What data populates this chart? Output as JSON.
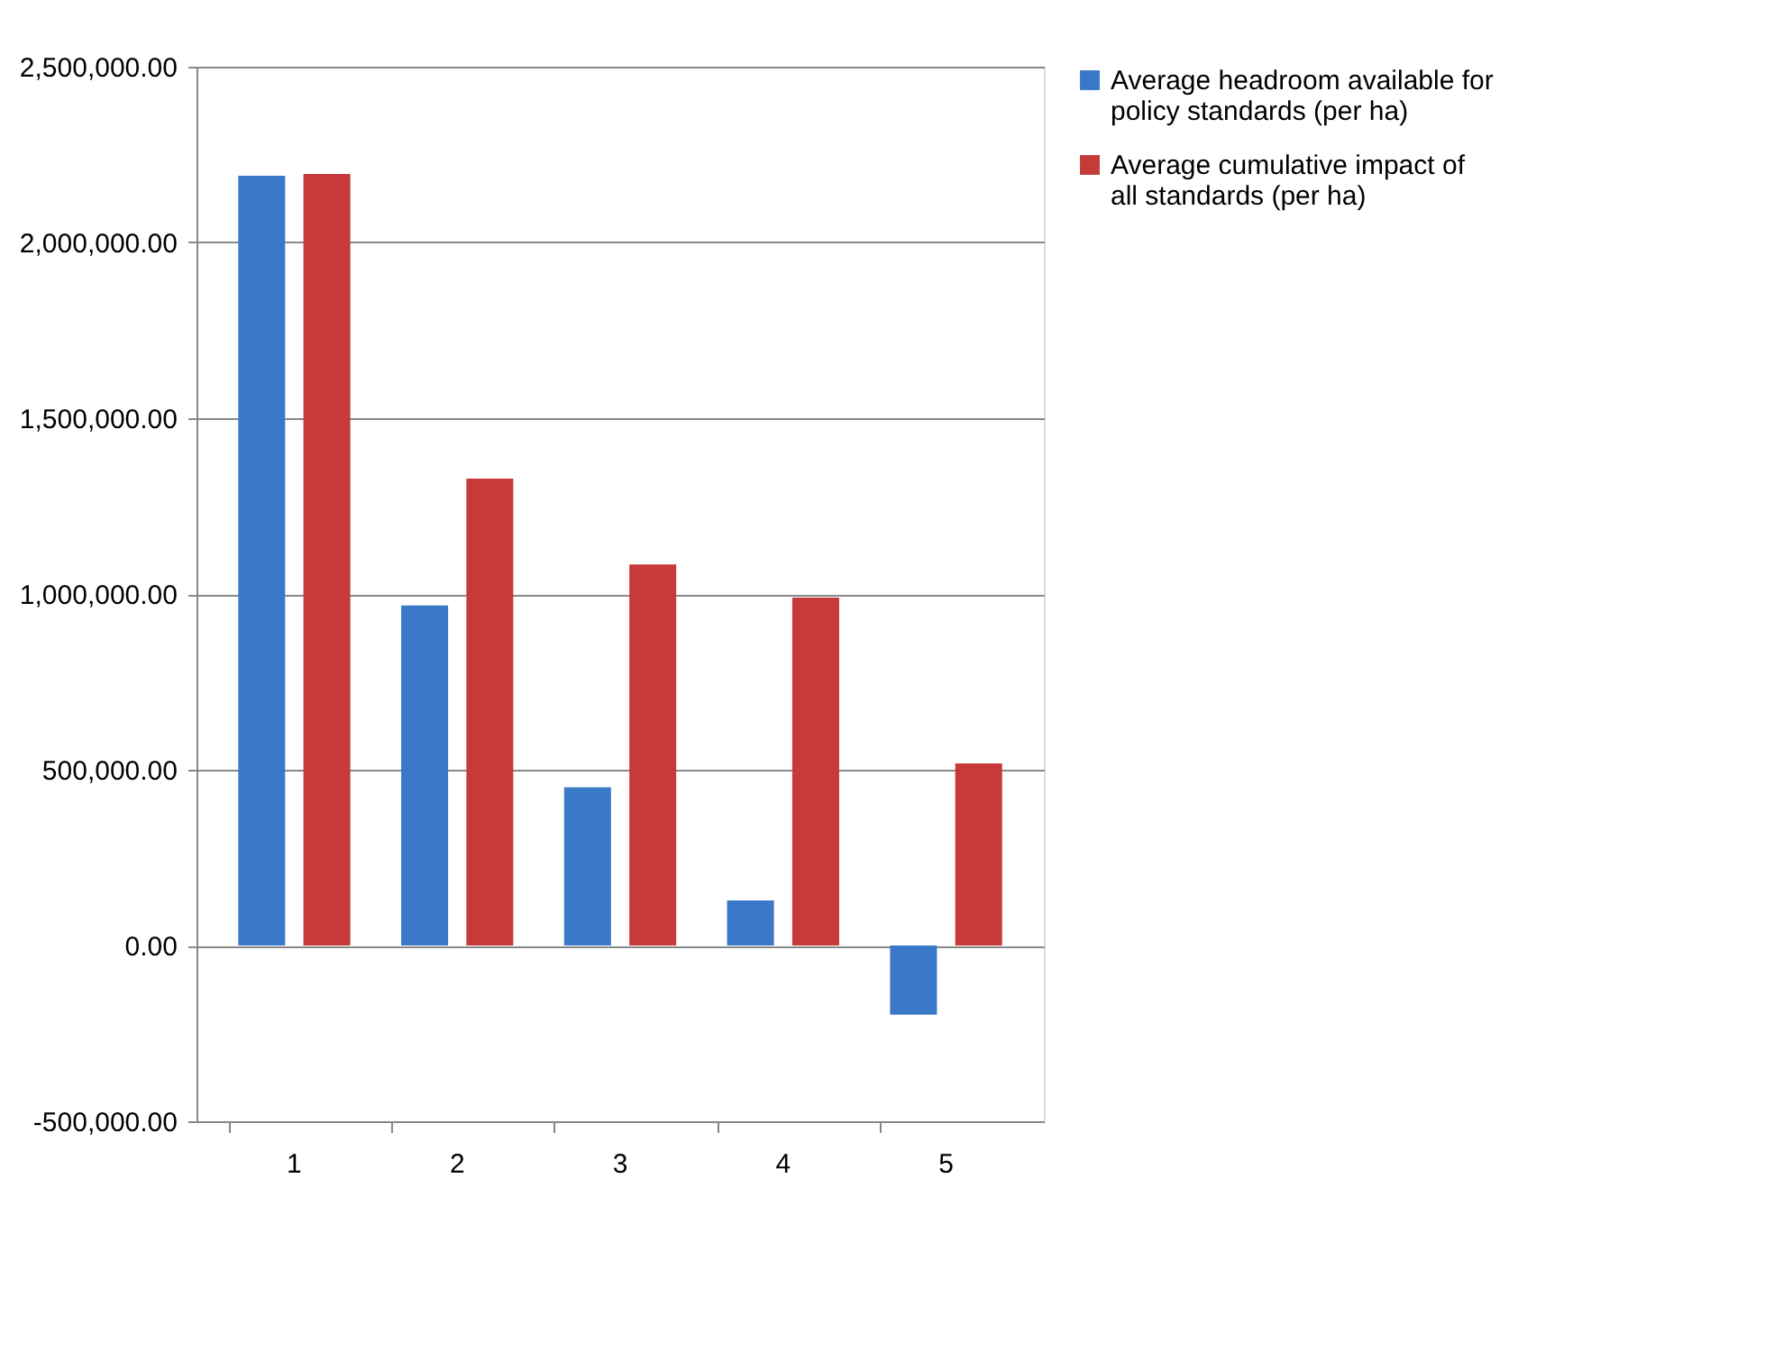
{
  "chart_data": {
    "type": "bar",
    "categories": [
      "1",
      "2",
      "3",
      "4",
      "5"
    ],
    "series": [
      {
        "name": "Average headroom available for policy standards (per ha)",
        "color": "#3a78c8",
        "values": [
          2190000,
          967000,
          450000,
          128000,
          -197000
        ]
      },
      {
        "name": "Average cumulative impact of all standards (per ha)",
        "color": "#c63a3a",
        "values": [
          2195000,
          1328000,
          1084000,
          990000,
          518000
        ]
      }
    ],
    "ylim": [
      -500000,
      2500000
    ],
    "yticks": [
      {
        "value": -500000,
        "label": "-500,000.00"
      },
      {
        "value": 0,
        "label": "0.00"
      },
      {
        "value": 500000,
        "label": "500,000.00"
      },
      {
        "value": 1000000,
        "label": "1,000,000.00"
      },
      {
        "value": 1500000,
        "label": "1,500,000.00"
      },
      {
        "value": 2000000,
        "label": "2,000,000.00"
      },
      {
        "value": 2500000,
        "label": "2,500,000.00"
      }
    ],
    "grid": "y",
    "legend": "right"
  }
}
